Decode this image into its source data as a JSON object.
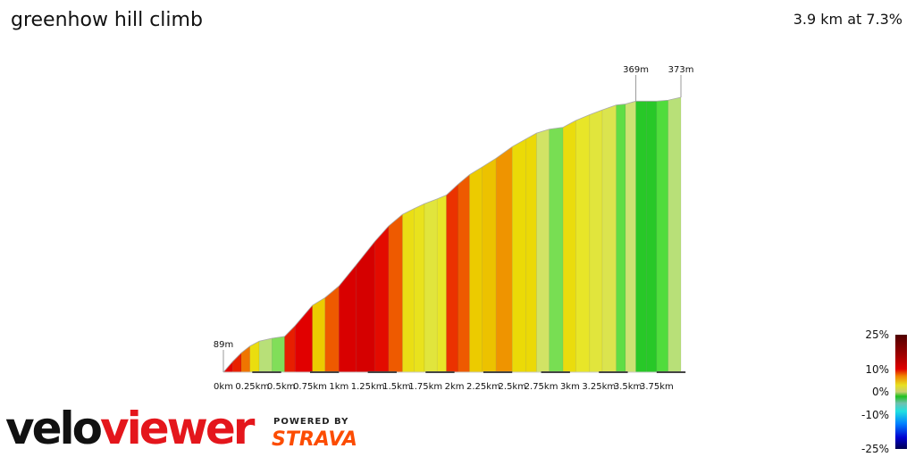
{
  "header": {
    "title": "greenhow hill climb",
    "summary": "3.9 km at 7.3%"
  },
  "chart_data": {
    "type": "area",
    "title": "greenhow hill climb",
    "xlabel": "",
    "ylabel": "",
    "x_unit": "km",
    "y_unit": "m",
    "xlim": [
      0,
      3.96
    ],
    "x_ticks": [
      "0km",
      "0.25km",
      "0.5km",
      "0.75km",
      "1km",
      "1.25km",
      "1.5km",
      "1.75km",
      "2km",
      "2.25km",
      "2.5km",
      "2.75km",
      "3km",
      "3.25km",
      "3.5km",
      "3.75km"
    ],
    "profile": [
      [
        0,
        89
      ],
      [
        0.08,
        100
      ],
      [
        0.155,
        109
      ],
      [
        0.23,
        116
      ],
      [
        0.31,
        121
      ],
      [
        0.42,
        124
      ],
      [
        0.53,
        126
      ],
      [
        0.62,
        137
      ],
      [
        0.77,
        158
      ],
      [
        0.88,
        166
      ],
      [
        1.0,
        178
      ],
      [
        1.15,
        200
      ],
      [
        1.31,
        224
      ],
      [
        1.43,
        240
      ],
      [
        1.55,
        252
      ],
      [
        1.65,
        258
      ],
      [
        1.74,
        263
      ],
      [
        1.85,
        268
      ],
      [
        1.93,
        272
      ],
      [
        2.03,
        283
      ],
      [
        2.13,
        293
      ],
      [
        2.24,
        301
      ],
      [
        2.36,
        310
      ],
      [
        2.5,
        322
      ],
      [
        2.62,
        330
      ],
      [
        2.71,
        336
      ],
      [
        2.82,
        340
      ],
      [
        2.94,
        342
      ],
      [
        3.05,
        349
      ],
      [
        3.17,
        355
      ],
      [
        3.28,
        360
      ],
      [
        3.4,
        365
      ],
      [
        3.48,
        366
      ],
      [
        3.57,
        369
      ],
      [
        3.66,
        369
      ],
      [
        3.75,
        369
      ],
      [
        3.85,
        370
      ],
      [
        3.96,
        373
      ]
    ],
    "annotations": [
      {
        "label": "89m",
        "x": 0
      },
      {
        "label": "369m",
        "x": 3.57
      },
      {
        "label": "373m",
        "x": 3.96
      }
    ],
    "gradient_legend": {
      "labels": [
        "25%",
        "10%",
        "0%",
        "-10%",
        "-25%"
      ]
    }
  },
  "branding": {
    "logo_velo": "velo",
    "logo_viewer": "viewer",
    "powered": "POWERED BY",
    "strava": "STRAVA"
  }
}
